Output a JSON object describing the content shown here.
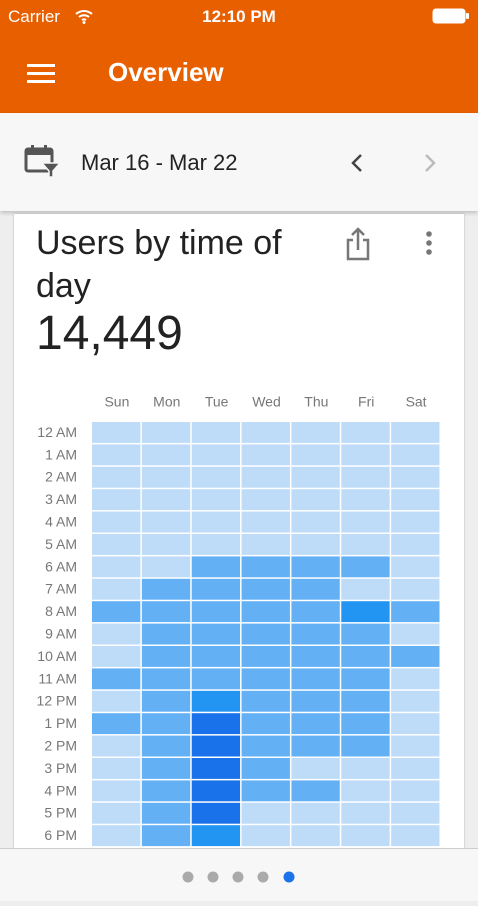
{
  "status_bar": {
    "carrier": "Carrier",
    "time": "12:10 PM"
  },
  "header": {
    "title": "Overview"
  },
  "date_bar": {
    "range": "Mar 16 - Mar 22"
  },
  "card": {
    "title": "Users by time of day",
    "total": "14,449",
    "heatmap": {
      "columns": [
        "Sun",
        "Mon",
        "Tue",
        "Wed",
        "Thu",
        "Fri",
        "Sat"
      ],
      "rows": [
        "12 AM",
        "1 AM",
        "2 AM",
        "3 AM",
        "4 AM",
        "5 AM",
        "6 AM",
        "7 AM",
        "8 AM",
        "9 AM",
        "10 AM",
        "11 AM",
        "12 PM",
        "1 PM",
        "2 PM",
        "3 PM",
        "4 PM",
        "5 PM",
        "6 PM"
      ],
      "palette": [
        "#bedcf8",
        "#64b0f4",
        "#2294f2",
        "#1a72ea"
      ],
      "levels": [
        [
          0,
          0,
          0,
          0,
          0,
          0,
          0
        ],
        [
          0,
          0,
          0,
          0,
          0,
          0,
          0
        ],
        [
          0,
          0,
          0,
          0,
          0,
          0,
          0
        ],
        [
          0,
          0,
          0,
          0,
          0,
          0,
          0
        ],
        [
          0,
          0,
          0,
          0,
          0,
          0,
          0
        ],
        [
          0,
          0,
          0,
          0,
          0,
          0,
          0
        ],
        [
          0,
          0,
          1,
          1,
          1,
          1,
          0
        ],
        [
          0,
          1,
          1,
          1,
          1,
          0,
          0
        ],
        [
          1,
          1,
          1,
          1,
          1,
          2,
          1
        ],
        [
          0,
          1,
          1,
          1,
          1,
          1,
          0
        ],
        [
          0,
          1,
          1,
          1,
          1,
          1,
          1
        ],
        [
          1,
          1,
          1,
          1,
          1,
          1,
          0
        ],
        [
          0,
          1,
          2,
          1,
          1,
          1,
          0
        ],
        [
          1,
          1,
          3,
          1,
          1,
          1,
          0
        ],
        [
          0,
          1,
          3,
          1,
          1,
          1,
          0
        ],
        [
          0,
          1,
          3,
          1,
          0,
          0,
          0
        ],
        [
          0,
          1,
          3,
          1,
          1,
          0,
          0
        ],
        [
          0,
          1,
          3,
          0,
          0,
          0,
          0
        ],
        [
          0,
          1,
          2,
          0,
          0,
          0,
          0
        ]
      ]
    }
  }
}
